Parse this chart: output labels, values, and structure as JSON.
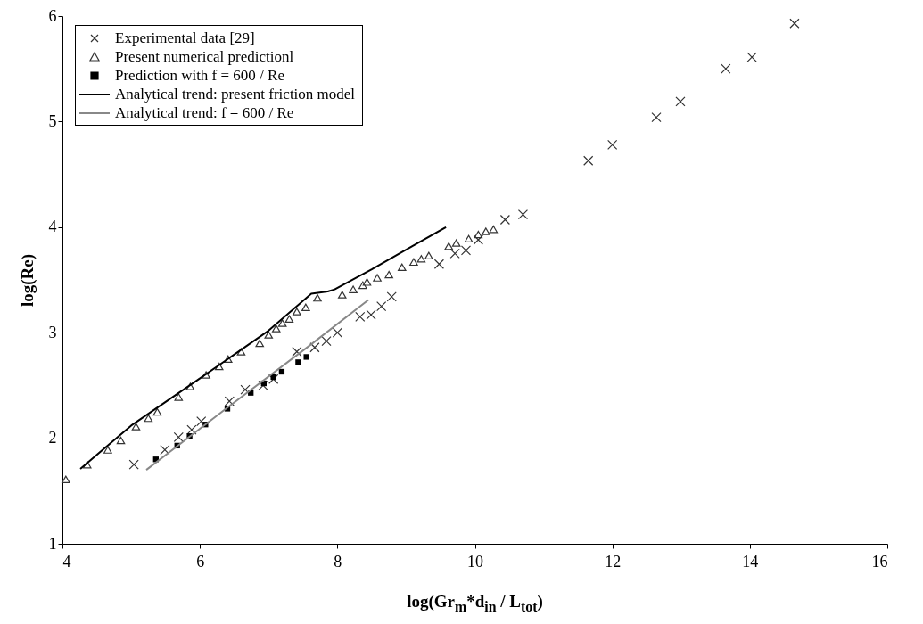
{
  "chart_data": {
    "type": "scatter",
    "xlabel": "log(Gr$_{m}$*d$_{in}$ / L$_{tot}$)",
    "ylabel": "log(Re)",
    "xlim": [
      4,
      16
    ],
    "xticks": [
      4,
      6,
      8,
      10,
      12,
      14,
      16
    ],
    "ylim": [
      1,
      6
    ],
    "yticks": [
      1,
      2,
      3,
      4,
      5,
      6
    ],
    "grid": false,
    "legend": "top left",
    "series": [
      {
        "name": "Experimental data [29]",
        "type": "scatter",
        "marker": "cross",
        "color": "#333333",
        "x": [
          5.04,
          5.49,
          5.69,
          5.88,
          6.02,
          6.43,
          6.66,
          6.92,
          7.07,
          7.41,
          7.67,
          7.84,
          8.0,
          8.33,
          8.49,
          8.64,
          8.79,
          9.48,
          9.71,
          9.87,
          10.05,
          10.44,
          10.7,
          11.65,
          12.0,
          12.64,
          12.99,
          13.65,
          14.03,
          14.65
        ],
        "values": [
          1.75,
          1.89,
          2.01,
          2.08,
          2.16,
          2.35,
          2.46,
          2.5,
          2.56,
          2.82,
          2.86,
          2.92,
          3.0,
          3.15,
          3.17,
          3.25,
          3.34,
          3.65,
          3.75,
          3.78,
          3.88,
          4.07,
          4.12,
          4.63,
          4.78,
          5.04,
          5.19,
          5.5,
          5.61,
          5.93
        ]
      },
      {
        "name": "Present numerical predictionl",
        "type": "scatter",
        "marker": "triangle",
        "color": "#333333",
        "x": [
          4.05,
          4.36,
          4.66,
          4.85,
          5.07,
          5.25,
          5.38,
          5.69,
          5.86,
          6.09,
          6.28,
          6.41,
          6.6,
          6.87,
          7.0,
          7.11,
          7.2,
          7.3,
          7.41,
          7.54,
          7.71,
          8.07,
          8.23,
          8.37,
          8.43,
          8.58,
          8.75,
          8.94,
          9.11,
          9.22,
          9.33,
          9.62,
          9.73,
          9.91,
          10.05,
          10.16,
          10.27
        ],
        "values": [
          1.61,
          1.75,
          1.89,
          1.98,
          2.11,
          2.19,
          2.25,
          2.39,
          2.49,
          2.6,
          2.68,
          2.75,
          2.82,
          2.9,
          2.98,
          3.04,
          3.09,
          3.13,
          3.2,
          3.24,
          3.33,
          3.36,
          3.41,
          3.45,
          3.48,
          3.52,
          3.55,
          3.62,
          3.67,
          3.7,
          3.73,
          3.82,
          3.85,
          3.89,
          3.93,
          3.96,
          3.98
        ]
      },
      {
        "name": "Prediction with f = 600 / Re",
        "type": "scatter",
        "marker": "square",
        "color": "#000000",
        "x": [
          5.36,
          5.67,
          5.85,
          6.08,
          6.4,
          6.74,
          6.93,
          7.07,
          7.19,
          7.43,
          7.55
        ],
        "values": [
          1.8,
          1.93,
          2.02,
          2.13,
          2.28,
          2.43,
          2.52,
          2.58,
          2.63,
          2.72,
          2.77
        ]
      },
      {
        "name": "Analytical trend: present friction model",
        "type": "line",
        "marker": "none",
        "color": "#000000",
        "x": [
          4.26,
          5.0,
          6.03,
          7.0,
          7.62,
          7.86,
          7.96,
          8.5,
          9.09,
          9.58
        ],
        "values": [
          1.71,
          2.12,
          2.58,
          3.02,
          3.37,
          3.39,
          3.41,
          3.6,
          3.82,
          4.0
        ]
      },
      {
        "name": "Analytical trend:  f = 600 / Re",
        "type": "line",
        "marker": "none",
        "color": "#888888",
        "x": [
          5.22,
          6.4,
          7.6,
          8.45
        ],
        "values": [
          1.7,
          2.29,
          2.88,
          3.31
        ]
      }
    ]
  }
}
